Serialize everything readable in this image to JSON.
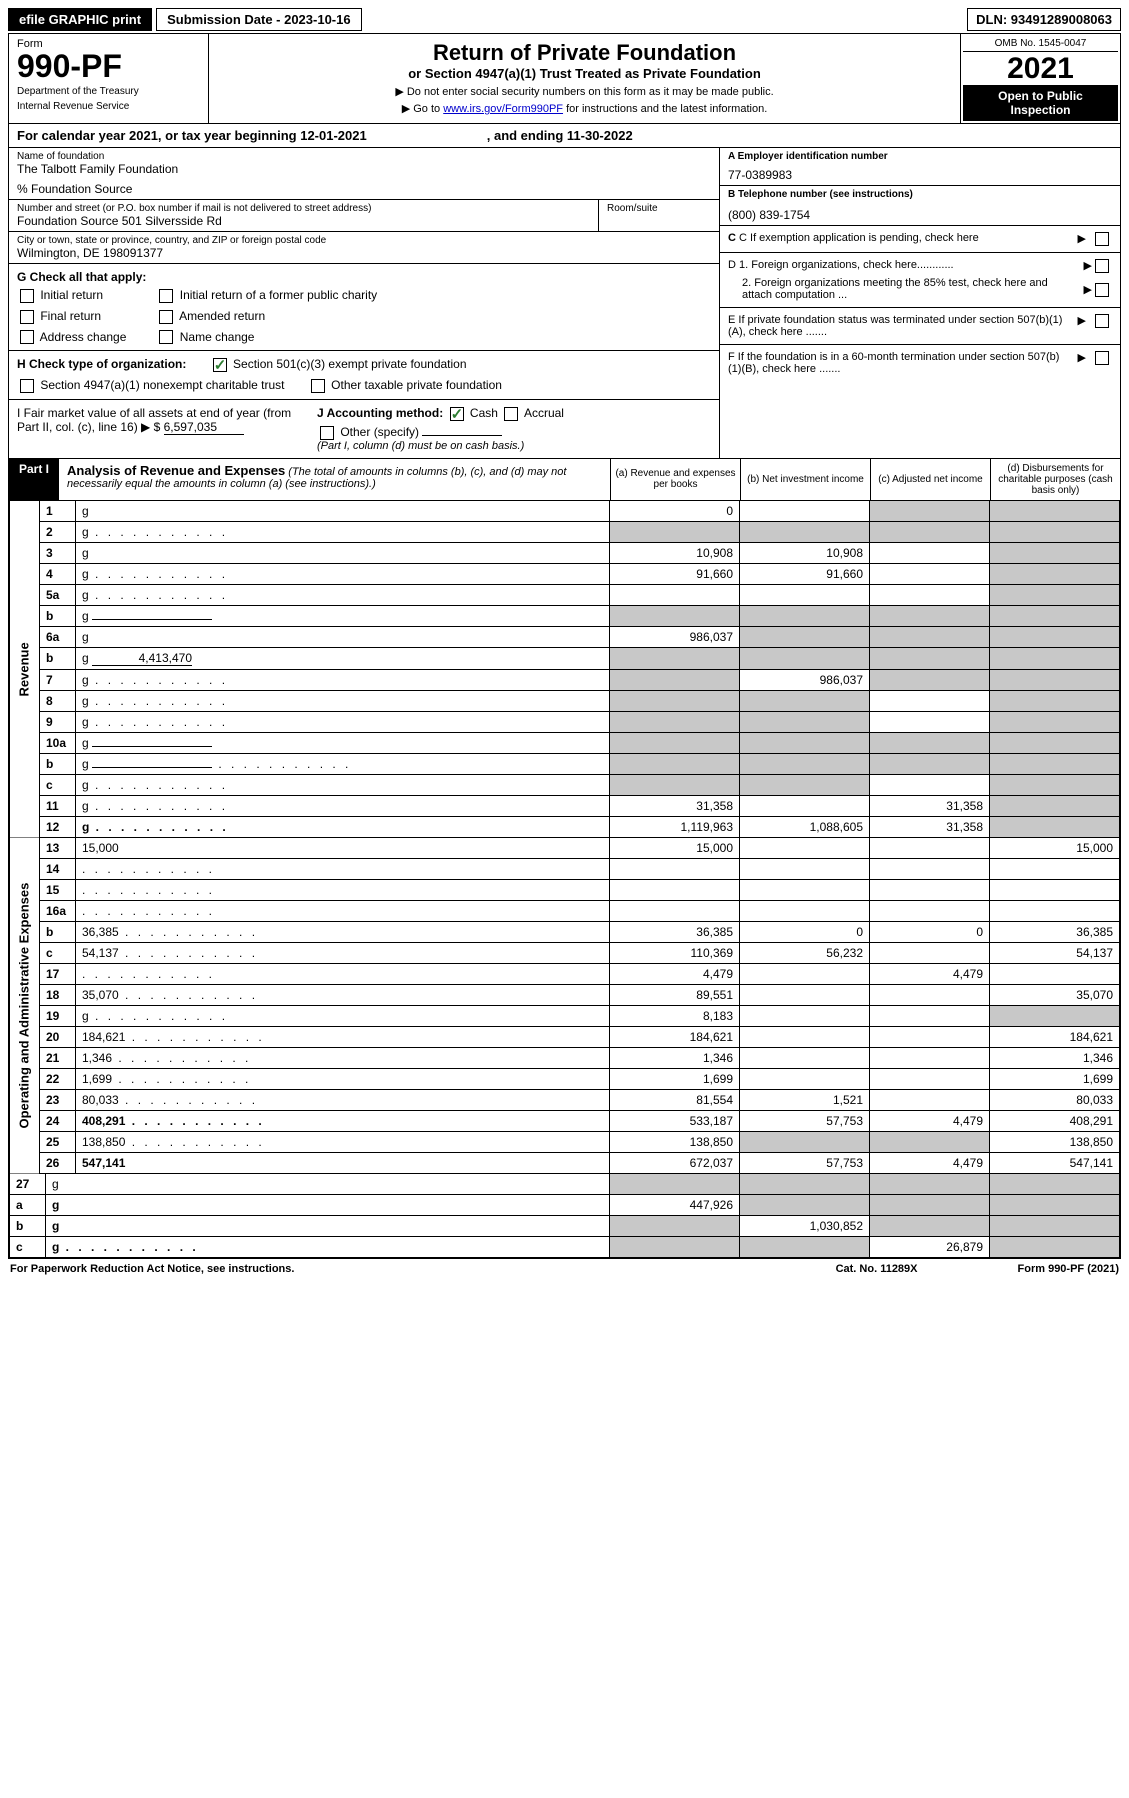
{
  "topbar": {
    "efile_btn": "efile GRAPHIC print",
    "submission_label": "Submission Date - 2023-10-16",
    "dln": "DLN: 93491289008063"
  },
  "header": {
    "form_label": "Form",
    "form_number": "990-PF",
    "dept1": "Department of the Treasury",
    "dept2": "Internal Revenue Service",
    "title": "Return of Private Foundation",
    "subtitle": "or Section 4947(a)(1) Trust Treated as Private Foundation",
    "instr1": "▶ Do not enter social security numbers on this form as it may be made public.",
    "instr2_pre": "▶ Go to ",
    "instr2_link": "www.irs.gov/Form990PF",
    "instr2_post": " for instructions and the latest information.",
    "omb": "OMB No. 1545-0047",
    "year": "2021",
    "open1": "Open to Public",
    "open2": "Inspection"
  },
  "calendar": {
    "text1": "For calendar year 2021, or tax year beginning 12-01-2021",
    "text2": ", and ending 11-30-2022"
  },
  "entity": {
    "name_label": "Name of foundation",
    "name": "The Talbott Family Foundation",
    "care_of": "% Foundation Source",
    "addr_label": "Number and street (or P.O. box number if mail is not delivered to street address)",
    "addr": "Foundation Source 501 Silversside Rd",
    "room_label": "Room/suite",
    "city_label": "City or town, state or province, country, and ZIP or foreign postal code",
    "city": "Wilmington, DE  198091377",
    "ein_label": "A Employer identification number",
    "ein": "77-0389983",
    "phone_label": "B Telephone number (see instructions)",
    "phone": "(800) 839-1754",
    "c_label": "C If exemption application is pending, check here",
    "d1": "D 1. Foreign organizations, check here............",
    "d2": "2. Foreign organizations meeting the 85% test, check here and attach computation ...",
    "e": "E  If private foundation status was terminated under section 507(b)(1)(A), check here .......",
    "f": "F  If the foundation is in a 60-month termination under section 507(b)(1)(B), check here .......",
    "g_label": "G Check all that apply:",
    "g_opts": [
      "Initial return",
      "Initial return of a former public charity",
      "Final return",
      "Amended return",
      "Address change",
      "Name change"
    ],
    "h_label": "H Check type of organization:",
    "h1": "Section 501(c)(3) exempt private foundation",
    "h2": "Section 4947(a)(1) nonexempt charitable trust",
    "h3": "Other taxable private foundation",
    "i_label": "I Fair market value of all assets at end of year (from Part II, col. (c), line 16) ▶ $",
    "i_value": "6,597,035",
    "j_label": "J Accounting method:",
    "j_cash": "Cash",
    "j_accrual": "Accrual",
    "j_other": "Other (specify)",
    "j_note": "(Part I, column (d) must be on cash basis.)"
  },
  "part1": {
    "label": "Part I",
    "title": "Analysis of Revenue and Expenses",
    "note": "(The total of amounts in columns (b), (c), and (d) may not necessarily equal the amounts in column (a) (see instructions).)",
    "col_a": "(a)   Revenue and expenses per books",
    "col_b": "(b)   Net investment income",
    "col_c": "(c)   Adjusted net income",
    "col_d": "(d)   Disbursements for charitable purposes (cash basis only)"
  },
  "side": {
    "revenue": "Revenue",
    "expenses": "Operating and Administrative Expenses"
  },
  "rows": [
    {
      "n": "1",
      "d": "g",
      "a": "0",
      "b": "",
      "c": "g"
    },
    {
      "n": "2",
      "d": "g",
      "a": "g",
      "b": "g",
      "c": "g",
      "dots": true
    },
    {
      "n": "3",
      "d": "g",
      "a": "10,908",
      "b": "10,908",
      "c": ""
    },
    {
      "n": "4",
      "d": "g",
      "a": "91,660",
      "b": "91,660",
      "c": "",
      "dots": true
    },
    {
      "n": "5a",
      "d": "g",
      "a": "",
      "b": "",
      "c": "",
      "dots": true
    },
    {
      "n": "b",
      "d": "g",
      "a": "g",
      "b": "g",
      "c": "g",
      "inline": true
    },
    {
      "n": "6a",
      "d": "g",
      "a": "986,037",
      "b": "g",
      "c": "g"
    },
    {
      "n": "b",
      "d": "g",
      "a": "g",
      "b": "g",
      "c": "g",
      "inline_val": "4,413,470"
    },
    {
      "n": "7",
      "d": "g",
      "a": "g",
      "b": "986,037",
      "c": "g",
      "dots": true
    },
    {
      "n": "8",
      "d": "g",
      "a": "g",
      "b": "g",
      "c": "",
      "dots": true
    },
    {
      "n": "9",
      "d": "g",
      "a": "g",
      "b": "g",
      "c": "",
      "dots": true
    },
    {
      "n": "10a",
      "d": "g",
      "a": "g",
      "b": "g",
      "c": "g",
      "inline": true
    },
    {
      "n": "b",
      "d": "g",
      "a": "g",
      "b": "g",
      "c": "g",
      "inline": true,
      "dots": true
    },
    {
      "n": "c",
      "d": "g",
      "a": "g",
      "b": "g",
      "c": "",
      "dots": true
    },
    {
      "n": "11",
      "d": "g",
      "a": "31,358",
      "b": "",
      "c": "31,358",
      "dots": true
    },
    {
      "n": "12",
      "d": "g",
      "a": "1,119,963",
      "b": "1,088,605",
      "c": "31,358",
      "bold": true,
      "dots": true
    }
  ],
  "exp_rows": [
    {
      "n": "13",
      "d": "15,000",
      "a": "15,000",
      "b": "",
      "c": ""
    },
    {
      "n": "14",
      "d": "",
      "a": "",
      "b": "",
      "c": "",
      "dots": true
    },
    {
      "n": "15",
      "d": "",
      "a": "",
      "b": "",
      "c": "",
      "dots": true
    },
    {
      "n": "16a",
      "d": "",
      "a": "",
      "b": "",
      "c": "",
      "dots": true
    },
    {
      "n": "b",
      "d": "36,385",
      "a": "36,385",
      "b": "0",
      "c": "0",
      "dots": true
    },
    {
      "n": "c",
      "d": "54,137",
      "a": "110,369",
      "b": "56,232",
      "c": "",
      "dots": true
    },
    {
      "n": "17",
      "d": "",
      "a": "4,479",
      "b": "",
      "c": "4,479",
      "dots": true
    },
    {
      "n": "18",
      "d": "35,070",
      "a": "89,551",
      "b": "",
      "c": "",
      "dots": true
    },
    {
      "n": "19",
      "d": "g",
      "a": "8,183",
      "b": "",
      "c": "",
      "dots": true
    },
    {
      "n": "20",
      "d": "184,621",
      "a": "184,621",
      "b": "",
      "c": "",
      "dots": true
    },
    {
      "n": "21",
      "d": "1,346",
      "a": "1,346",
      "b": "",
      "c": "",
      "dots": true
    },
    {
      "n": "22",
      "d": "1,699",
      "a": "1,699",
      "b": "",
      "c": "",
      "dots": true
    },
    {
      "n": "23",
      "d": "80,033",
      "a": "81,554",
      "b": "1,521",
      "c": "",
      "dots": true
    },
    {
      "n": "24",
      "d": "408,291",
      "a": "533,187",
      "b": "57,753",
      "c": "4,479",
      "bold": true,
      "dots": true
    },
    {
      "n": "25",
      "d": "138,850",
      "a": "138,850",
      "b": "g",
      "c": "g",
      "dots": true
    },
    {
      "n": "26",
      "d": "547,141",
      "a": "672,037",
      "b": "57,753",
      "c": "4,479",
      "bold": true
    }
  ],
  "bottom_rows": [
    {
      "n": "27",
      "d": "g",
      "a": "g",
      "b": "g",
      "c": "g"
    },
    {
      "n": "a",
      "d": "g",
      "a": "447,926",
      "b": "g",
      "c": "g",
      "bold": true
    },
    {
      "n": "b",
      "d": "g",
      "a": "g",
      "b": "1,030,852",
      "c": "g",
      "bold": true
    },
    {
      "n": "c",
      "d": "g",
      "a": "g",
      "b": "g",
      "c": "26,879",
      "bold": true,
      "dots": true
    }
  ],
  "footer": {
    "left": "For Paperwork Reduction Act Notice, see instructions.",
    "center": "Cat. No. 11289X",
    "right": "Form 990-PF (2021)"
  }
}
